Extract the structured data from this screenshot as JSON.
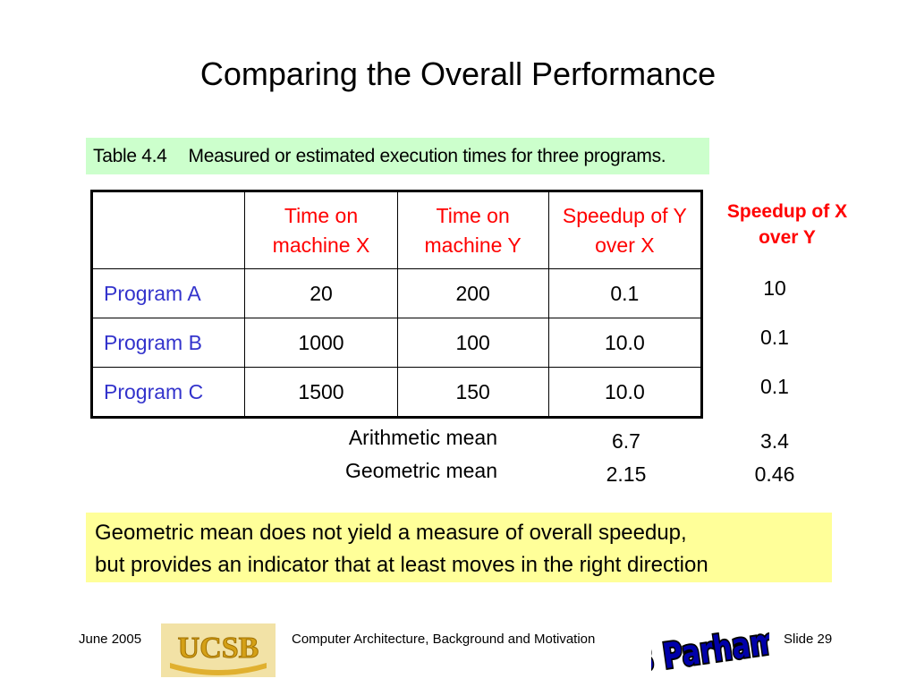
{
  "slide": {
    "title": "Comparing the Overall Performance",
    "caption_number": "Table 4.4",
    "caption_text": "Measured or estimated execution times for three programs.",
    "table": {
      "headers": [
        "",
        "Time on machine X",
        "Time on machine Y",
        "Speedup of Y over X"
      ],
      "rows": [
        {
          "label": "Program A",
          "x": "20",
          "y": "200",
          "speedup": "0.1"
        },
        {
          "label": "Program B",
          "x": "1000",
          "y": "100",
          "speedup": "10.0"
        },
        {
          "label": "Program C",
          "x": "1500",
          "y": "150",
          "speedup": "10.0"
        }
      ]
    },
    "speedup_x_over_y": {
      "header": "Speedup of X over Y",
      "values": [
        "10",
        "0.1",
        "0.1"
      ]
    },
    "means": [
      {
        "label": "Arithmetic mean",
        "speedup_y_over_x": "6.7",
        "speedup_x_over_y": "3.4"
      },
      {
        "label": "Geometric mean",
        "speedup_y_over_x": "2.15",
        "speedup_x_over_y": "0.46"
      }
    ],
    "note": {
      "line1": "Geometric mean does not yield a measure of overall speedup,",
      "line2": "but provides an indicator that at least moves in the right direction"
    }
  },
  "footer": {
    "date": "June 2005",
    "logo": "UCSB",
    "course": "Computer Architecture, Background and Motivation",
    "signature": "B Parhami",
    "slide": "Slide 29"
  },
  "colors": {
    "header_red": "#ff0000",
    "row_label_blue": "#3333cc",
    "caption_bg": "#ccffcc",
    "note_bg": "#ffff99"
  }
}
